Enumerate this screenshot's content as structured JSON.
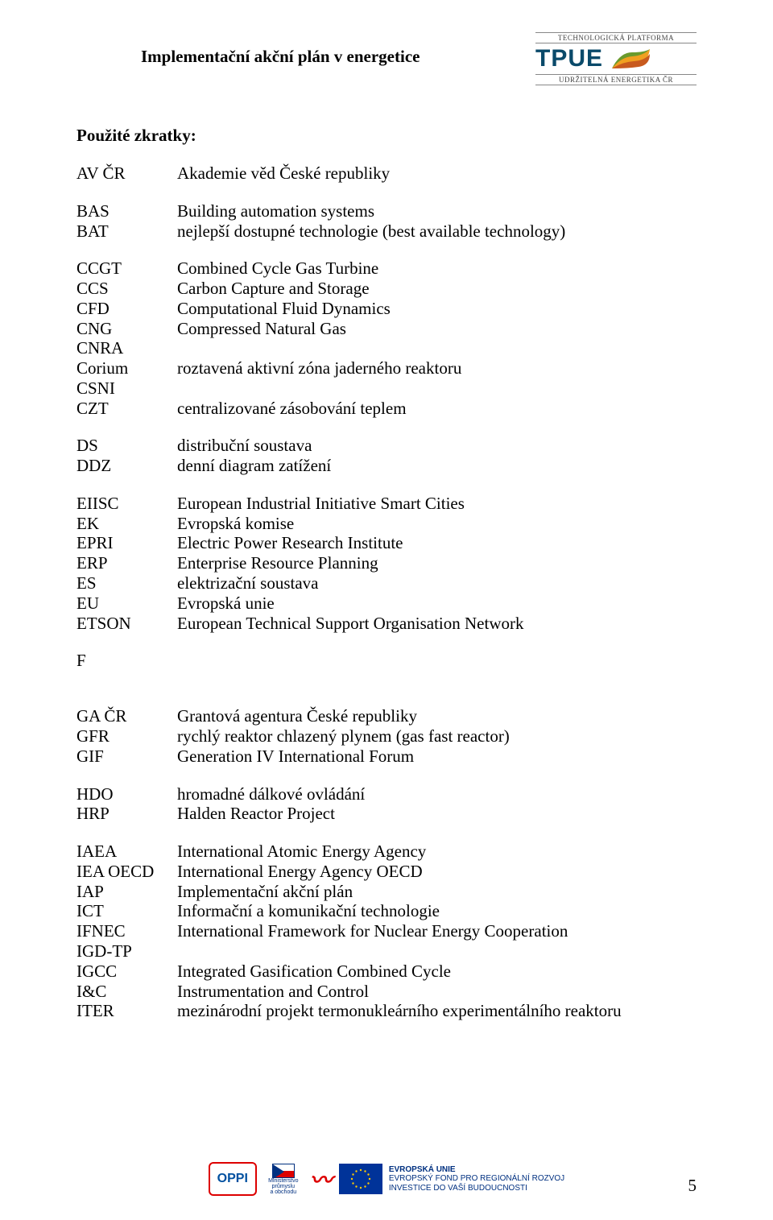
{
  "header": {
    "title": "Implementační akční plán v energetice",
    "logo": {
      "top": "TECHNOLOGICKÁ PLATFORMA",
      "main": "TPUE",
      "bottom": "UDRŽITELNÁ ENERGETIKA ČR"
    }
  },
  "section_heading": "Použité zkratky:",
  "blocks": [
    [
      {
        "k": "AV ČR",
        "v": "Akademie věd České republiky"
      }
    ],
    [
      {
        "k": "BAS",
        "v": "Building automation systems"
      },
      {
        "k": "BAT",
        "v": "nejlepší dostupné technologie (best available technology)"
      }
    ],
    [
      {
        "k": "CCGT",
        "v": "Combined Cycle Gas Turbine"
      },
      {
        "k": "CCS",
        "v": "Carbon Capture and Storage"
      },
      {
        "k": "CFD",
        "v": "Computational Fluid Dynamics"
      },
      {
        "k": "CNG",
        "v": "Compressed Natural Gas"
      },
      {
        "k": "CNRA",
        "v": ""
      },
      {
        "k": "Corium",
        "v": "roztavená aktivní zóna jaderného reaktoru"
      },
      {
        "k": "CSNI",
        "v": ""
      },
      {
        "k": "CZT",
        "v": "centralizované zásobování teplem"
      }
    ],
    [
      {
        "k": "DS",
        "v": "distribuční soustava"
      },
      {
        "k": "DDZ",
        "v": "denní diagram zatížení"
      }
    ],
    [
      {
        "k": "EIISC",
        "v": "European Industrial Initiative Smart Cities"
      },
      {
        "k": "EK",
        "v": "Evropská komise"
      },
      {
        "k": "EPRI",
        "v": "Electric Power Research Institute"
      },
      {
        "k": "ERP",
        "v": "Enterprise Resource Planning"
      },
      {
        "k": "ES",
        "v": "elektrizační soustava"
      },
      {
        "k": "EU",
        "v": "Evropská unie"
      },
      {
        "k": "ETSON",
        "v": "European Technical Support Organisation Network"
      }
    ]
  ],
  "section_letter": "F",
  "blocks2": [
    [
      {
        "k": "GA ČR",
        "v": "Grantová agentura České republiky"
      },
      {
        "k": "GFR",
        "v": "rychlý reaktor chlazený plynem (gas fast reactor)"
      },
      {
        "k": "GIF",
        "v": "Generation IV International Forum"
      }
    ],
    [
      {
        "k": "HDO",
        "v": "hromadné dálkové ovládání"
      },
      {
        "k": "HRP",
        "v": "Halden Reactor Project"
      }
    ],
    [
      {
        "k": "IAEA",
        "v": "International Atomic Energy Agency"
      },
      {
        "k": "IEA OECD",
        "v": "International Energy Agency OECD"
      },
      {
        "k": "IAP",
        "v": "Implementační akční plán"
      },
      {
        "k": "ICT",
        "v": "Informační a komunikační technologie"
      },
      {
        "k": "IFNEC",
        "v": "International Framework for Nuclear Energy Cooperation"
      },
      {
        "k": "IGD-TP",
        "v": ""
      },
      {
        "k": "IGCC",
        "v": "Integrated Gasification Combined Cycle"
      },
      {
        "k": "I&C",
        "v": "Instrumentation and Control"
      },
      {
        "k": "ITER",
        "v": "mezinárodní projekt termonukleárního experimentálního reaktoru"
      }
    ]
  ],
  "footer": {
    "oppi": "OPPI",
    "mpo_line1": "Ministerstvo",
    "mpo_line2": "průmyslu",
    "mpo_line3": "a obchodu",
    "eu_line1": "EVROPSKÁ UNIE",
    "eu_line2": "EVROPSKÝ FOND PRO REGIONÁLNÍ ROZVOJ",
    "eu_line3": "INVESTICE DO VAŠÍ BUDOUCNOSTI"
  },
  "page_number": "5",
  "colors": {
    "text": "#000000",
    "bg": "#ffffff",
    "tpue_blue": "#0a4a6a",
    "eu_blue": "#003399",
    "eu_gold": "#ffcc00",
    "red": "#d00000"
  }
}
